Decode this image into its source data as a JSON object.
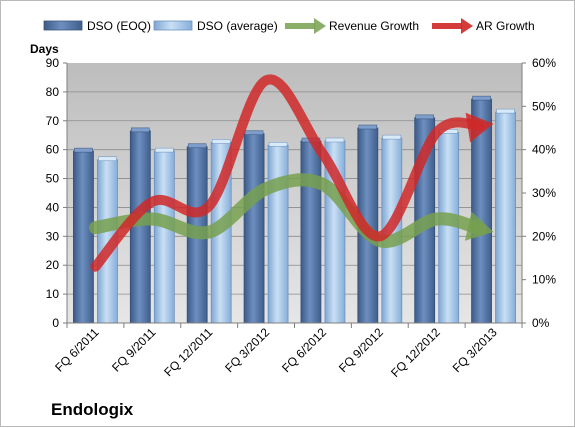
{
  "chart_data": {
    "type": "bar",
    "title": "",
    "company": "Endologix",
    "categories": [
      "FQ 6/2011",
      "FQ 9/2011",
      "FQ 12/2011",
      "FQ 3/2012",
      "FQ 6/2012",
      "FQ 9/2012",
      "FQ 12/2012",
      "FQ 3/2013"
    ],
    "ylabel": "Days",
    "ylim": [
      0,
      90
    ],
    "yticks": [
      "0",
      "10",
      "20",
      "30",
      "40",
      "50",
      "60",
      "70",
      "80",
      "90"
    ],
    "y2lim": [
      0,
      0.6
    ],
    "y2ticks": [
      "0%",
      "10%",
      "20%",
      "30%",
      "40%",
      "50%",
      "60%"
    ],
    "grid": true,
    "legend_position": "top",
    "series": [
      {
        "name": "DSO (EOQ)",
        "axis": "left",
        "type": "bar",
        "color": "#4f6fa0",
        "values": [
          59.5,
          66.5,
          61,
          65.5,
          63,
          67.5,
          71,
          77.5
        ]
      },
      {
        "name": "DSO (average)",
        "axis": "left",
        "type": "bar",
        "color": "#9dc3e6",
        "values": [
          56.5,
          59.5,
          62.5,
          61.5,
          63,
          64,
          66,
          73
        ]
      },
      {
        "name": "Revenue Growth",
        "axis": "right",
        "type": "line",
        "color": "#77a04f",
        "values": [
          0.22,
          0.24,
          0.21,
          0.31,
          0.32,
          0.19,
          0.24,
          0.21
        ]
      },
      {
        "name": "AR Growth",
        "axis": "right",
        "type": "line",
        "color": "#d02828",
        "values": [
          0.13,
          0.28,
          0.27,
          0.56,
          0.39,
          0.2,
          0.44,
          0.46
        ]
      }
    ]
  }
}
